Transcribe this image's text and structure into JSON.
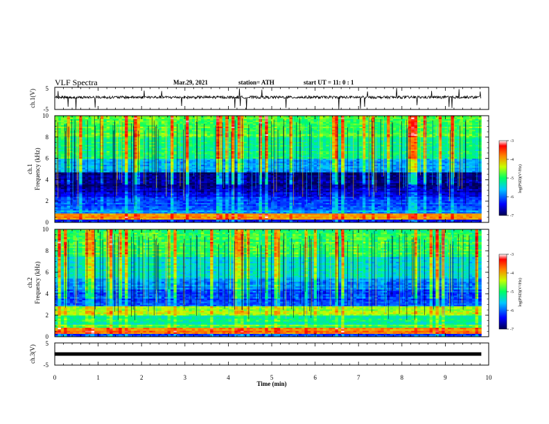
{
  "header": {
    "title": "VLF Spectra",
    "date": "Mar.29, 2021",
    "station": "station= ATH",
    "start": "start  UT =   11: 0  : 1"
  },
  "chart_data": [
    {
      "type": "line",
      "ylabel": "ch.1(V)",
      "ylim": [
        -5,
        5
      ],
      "y_ticks": [
        "5",
        "-5"
      ],
      "baseline": 0.5,
      "note": "noisy waveform around ~0.5 V with sporadic spikes"
    },
    {
      "type": "heatmap",
      "ylabel": "ch.1\nFrequency  (kHz)",
      "ylabel_line1": "ch.1",
      "ylabel_line2": "Frequency  (kHz)",
      "ylim": [
        0,
        10
      ],
      "y_ticks": [
        "0",
        "2",
        "4",
        "6",
        "8",
        "10"
      ],
      "colorbar": {
        "label": "log(PSD)(V²/Hz)",
        "ticks": [
          "-3",
          "-4",
          "-5",
          "-6",
          "-7"
        ],
        "range": [
          -7,
          -3
        ]
      }
    },
    {
      "type": "heatmap",
      "ylabel_line1": "ch.2",
      "ylabel_line2": "Frequency  (kHz)",
      "ylim": [
        0,
        10
      ],
      "y_ticks": [
        "0",
        "2",
        "4",
        "6",
        "8",
        "10"
      ],
      "colorbar": {
        "label": "log(PSD)(V²/Hz)",
        "ticks": [
          "-3",
          "-4",
          "-5",
          "-6",
          "-7"
        ],
        "range": [
          -7,
          -3
        ]
      }
    },
    {
      "type": "line",
      "ylabel": "ch.3(V)",
      "ylim": [
        -5,
        5
      ],
      "y_ticks": [
        "5",
        "-5"
      ],
      "baseline": 0.0,
      "note": "flat thick line near 0 V"
    }
  ],
  "x_axis": {
    "label": "Time  (min)",
    "ticks": [
      "0",
      "1",
      "2",
      "3",
      "4",
      "5",
      "6",
      "7",
      "8",
      "9",
      "10"
    ],
    "xlim": [
      0,
      10
    ],
    "data_end": 9.83
  },
  "colors": {
    "spectrogram_scale": [
      "#000050",
      "#0000ff",
      "#00c8ff",
      "#00ff64",
      "#c8ff00",
      "#ff8000",
      "#ff0000",
      "#ffffff"
    ]
  }
}
